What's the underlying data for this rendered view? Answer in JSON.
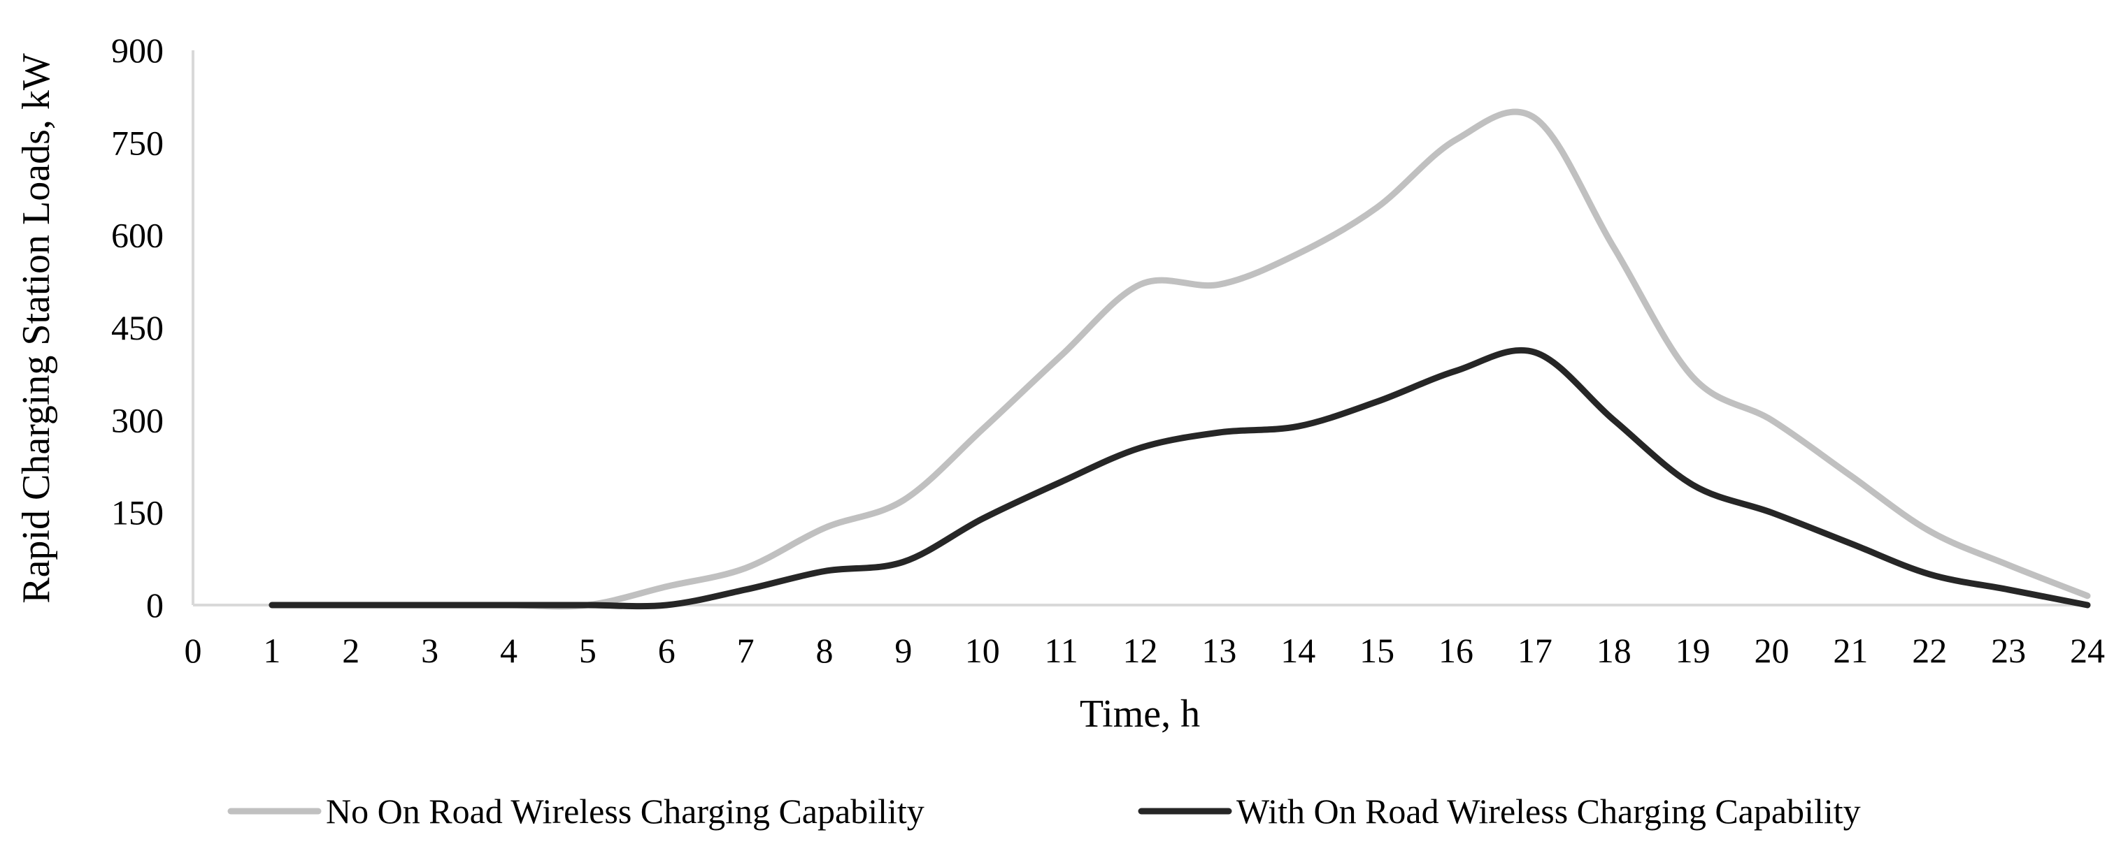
{
  "chart_data": {
    "type": "line",
    "title": "",
    "xlabel": "Time, h",
    "ylabel": "Rapid Charging Station Loads, kW",
    "xlim": [
      0,
      24
    ],
    "ylim": [
      0,
      900
    ],
    "x_ticks": [
      0,
      1,
      2,
      3,
      4,
      5,
      6,
      7,
      8,
      9,
      10,
      11,
      12,
      13,
      14,
      15,
      16,
      17,
      18,
      19,
      20,
      21,
      22,
      23,
      24
    ],
    "y_ticks": [
      0,
      150,
      300,
      450,
      600,
      750,
      900
    ],
    "grid": false,
    "legend_position": "bottom",
    "x": [
      1,
      2,
      3,
      4,
      5,
      6,
      7,
      8,
      9,
      10,
      11,
      12,
      13,
      14,
      15,
      16,
      17,
      18,
      19,
      20,
      21,
      22,
      23,
      24
    ],
    "series": [
      {
        "name": "No On Road Wireless Charging Capability",
        "color": "#c0c0c0",
        "values": [
          0,
          0,
          0,
          0,
          0,
          30,
          60,
          125,
          170,
          285,
          405,
          520,
          520,
          570,
          645,
          755,
          790,
          580,
          370,
          300,
          210,
          120,
          65,
          15
        ]
      },
      {
        "name": "With On Road Wireless Charging Capability",
        "color": "#262626",
        "values": [
          0,
          0,
          0,
          0,
          0,
          0,
          25,
          55,
          70,
          140,
          200,
          255,
          280,
          290,
          330,
          380,
          410,
          300,
          195,
          150,
          100,
          50,
          25,
          0
        ]
      }
    ]
  }
}
